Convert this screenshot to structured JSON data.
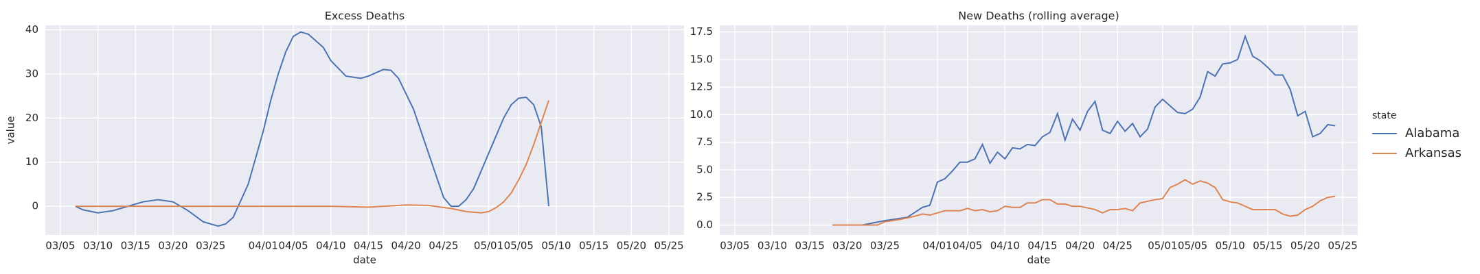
{
  "chart_data": [
    {
      "type": "line",
      "title": "Excess Deaths",
      "xlabel": "date",
      "ylabel": "value",
      "xlim": [
        "03/03",
        "05/27"
      ],
      "ylim": [
        -6.5,
        41
      ],
      "xticks": [
        "03/05",
        "03/10",
        "03/15",
        "03/20",
        "03/25",
        "04/01",
        "04/05",
        "04/10",
        "04/15",
        "04/20",
        "04/25",
        "05/01",
        "05/05",
        "05/10",
        "05/15",
        "05/20",
        "05/25"
      ],
      "yticks": [
        0,
        10,
        20,
        30,
        40
      ],
      "grid": true,
      "series": [
        {
          "name": "Alabama",
          "color": "#4c72b0",
          "x": [
            "03/07",
            "03/08",
            "03/10",
            "03/12",
            "03/14",
            "03/16",
            "03/18",
            "03/20",
            "03/22",
            "03/24",
            "03/26",
            "03/27",
            "03/28",
            "03/30",
            "04/01",
            "04/02",
            "04/03",
            "04/04",
            "04/05",
            "04/06",
            "04/07",
            "04/09",
            "04/10",
            "04/12",
            "04/14",
            "04/15",
            "04/17",
            "04/18",
            "04/19",
            "04/21",
            "04/23",
            "04/25",
            "04/26",
            "04/27",
            "04/28",
            "04/29",
            "05/01",
            "05/02",
            "05/03",
            "05/04",
            "05/05",
            "05/06",
            "05/07",
            "05/08",
            "05/09"
          ],
          "values": [
            0,
            -0.8,
            -1.5,
            -1,
            0,
            1,
            1.5,
            1,
            -1,
            -3.5,
            -4.5,
            -4,
            -2.5,
            5,
            17,
            24,
            30,
            35,
            38.5,
            39.5,
            39,
            36,
            33,
            29.5,
            29,
            29.5,
            31,
            30.8,
            29,
            22,
            12,
            2,
            0,
            0,
            1.5,
            4,
            12,
            16,
            20,
            23,
            24.5,
            24.7,
            23,
            18,
            0
          ]
        },
        {
          "name": "Arkansas",
          "color": "#dd8452",
          "x": [
            "03/07",
            "03/20",
            "04/10",
            "04/15",
            "04/20",
            "04/23",
            "04/26",
            "04/28",
            "04/30",
            "05/01",
            "05/02",
            "05/03",
            "05/04",
            "05/05",
            "05/06",
            "05/07",
            "05/08",
            "05/09"
          ],
          "values": [
            0,
            0,
            0,
            -0.2,
            0.3,
            0.2,
            -0.5,
            -1.2,
            -1.5,
            -1.2,
            -0.3,
            1,
            3,
            6,
            9.5,
            14,
            19,
            24
          ]
        }
      ]
    },
    {
      "type": "line",
      "title": "New Deaths (rolling average)",
      "xlabel": "date",
      "xlim": [
        "03/03",
        "05/27"
      ],
      "ylim": [
        -0.9,
        18.1
      ],
      "xticks": [
        "03/05",
        "03/10",
        "03/15",
        "03/20",
        "03/25",
        "04/01",
        "04/05",
        "04/10",
        "04/15",
        "04/20",
        "04/25",
        "05/01",
        "05/05",
        "05/10",
        "05/15",
        "05/20",
        "05/25"
      ],
      "yticks": [
        {
          "value": 0,
          "label": "0.0"
        },
        2.5,
        {
          "value": 5,
          "label": "5.0"
        },
        7.5,
        {
          "value": 10,
          "label": "10.0"
        },
        12.5,
        {
          "value": 15,
          "label": "15.0"
        },
        17.5
      ],
      "grid": true,
      "series": [
        {
          "name": "Alabama",
          "color": "#4c72b0",
          "x": [
            "03/22",
            "03/25",
            "03/28",
            "03/30",
            "03/31",
            "04/01",
            "04/02",
            "04/03",
            "04/04",
            "04/05",
            "04/06",
            "04/07",
            "04/08",
            "04/09",
            "04/10",
            "04/11",
            "04/12",
            "04/13",
            "04/14",
            "04/15",
            "04/16",
            "04/17",
            "04/18",
            "04/19",
            "04/20",
            "04/21",
            "04/22",
            "04/23",
            "04/24",
            "04/25",
            "04/26",
            "04/27",
            "04/28",
            "04/29",
            "04/30",
            "05/01",
            "05/02",
            "05/03",
            "05/04",
            "05/05",
            "05/06",
            "05/07",
            "05/08",
            "05/09",
            "05/10",
            "05/11",
            "05/12",
            "05/13",
            "05/14",
            "05/15",
            "05/16",
            "05/17",
            "05/18",
            "05/19",
            "05/20",
            "05/21",
            "05/22",
            "05/23",
            "05/24"
          ],
          "values": [
            0,
            0.4,
            0.7,
            1.6,
            1.8,
            3.9,
            4.2,
            4.9,
            5.7,
            5.7,
            6,
            7.3,
            5.6,
            6.6,
            6,
            7,
            6.9,
            7.3,
            7.2,
            8,
            8.4,
            10.1,
            7.7,
            9.6,
            8.6,
            10.3,
            11.2,
            8.6,
            8.3,
            9.4,
            8.5,
            9.2,
            8,
            8.7,
            10.7,
            11.4,
            10.8,
            10.2,
            10.1,
            10.5,
            11.6,
            13.9,
            13.5,
            14.6,
            14.7,
            15,
            17.1,
            15.3,
            14.9,
            14.3,
            13.6,
            13.6,
            12.3,
            9.9,
            10.3,
            8,
            8.3,
            9.1,
            9
          ]
        },
        {
          "name": "Arkansas",
          "color": "#dd8452",
          "x": [
            "03/18",
            "03/24",
            "03/25",
            "03/27",
            "03/29",
            "03/30",
            "03/31",
            "04/02",
            "04/04",
            "04/05",
            "04/06",
            "04/07",
            "04/08",
            "04/09",
            "04/10",
            "04/11",
            "04/12",
            "04/13",
            "04/14",
            "04/15",
            "04/16",
            "04/17",
            "04/18",
            "04/19",
            "04/20",
            "04/22",
            "04/23",
            "04/24",
            "04/25",
            "04/26",
            "04/27",
            "04/28",
            "04/30",
            "05/01",
            "05/02",
            "05/03",
            "05/04",
            "05/05",
            "05/06",
            "05/07",
            "05/08",
            "05/09",
            "05/10",
            "05/11",
            "05/12",
            "05/13",
            "05/15",
            "05/16",
            "05/17",
            "05/18",
            "05/19",
            "05/20",
            "05/21",
            "05/22",
            "05/23",
            "05/24"
          ],
          "values": [
            0,
            0,
            0.3,
            0.5,
            0.8,
            1,
            0.9,
            1.3,
            1.3,
            1.5,
            1.3,
            1.4,
            1.2,
            1.3,
            1.7,
            1.6,
            1.6,
            2,
            2,
            2.3,
            2.3,
            1.9,
            1.9,
            1.7,
            1.7,
            1.4,
            1.1,
            1.4,
            1.4,
            1.5,
            1.3,
            2,
            2.3,
            2.4,
            3.4,
            3.7,
            4.1,
            3.7,
            4,
            3.8,
            3.4,
            2.3,
            2.1,
            2,
            1.7,
            1.4,
            1.4,
            1.4,
            1,
            0.8,
            0.9,
            1.4,
            1.7,
            2.2,
            2.5,
            2.6
          ]
        }
      ]
    }
  ],
  "legend": {
    "title": "state"
  }
}
